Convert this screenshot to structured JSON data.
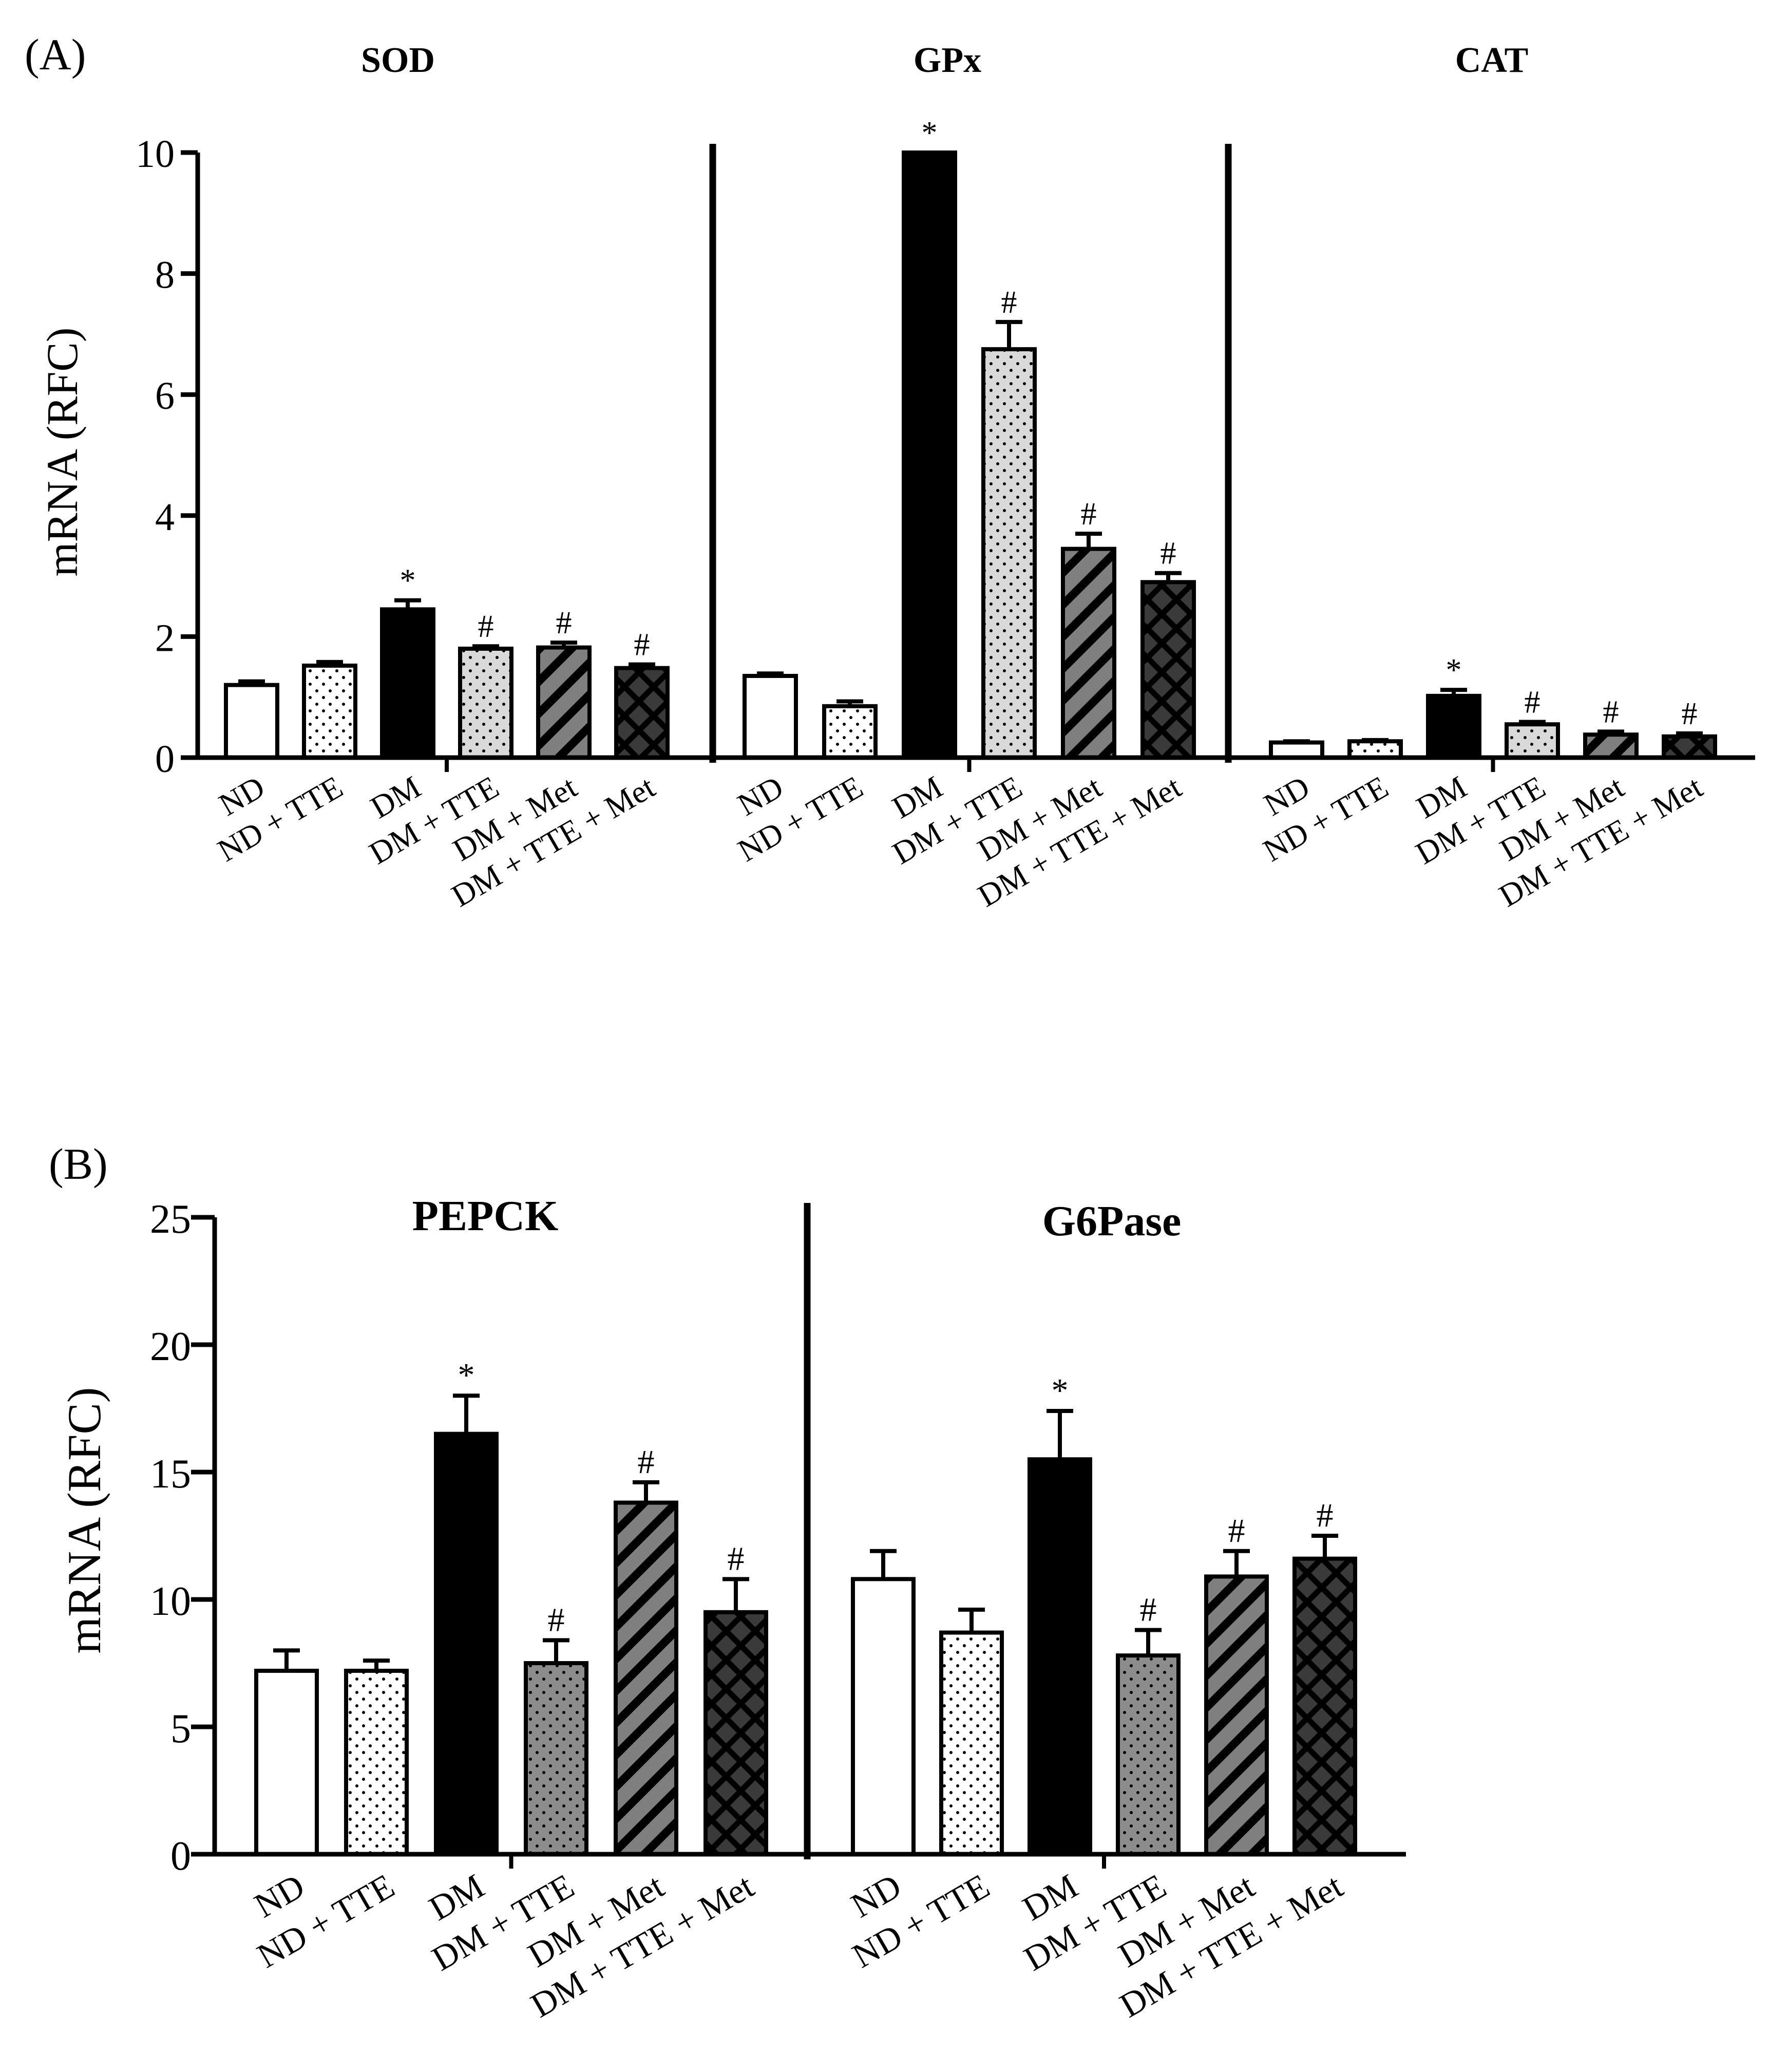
{
  "categories": [
    "ND",
    "ND + TTE",
    "DM",
    "DM + TTE",
    "DM + Met",
    "DM + TTE + Met"
  ],
  "pattern_names": [
    "white",
    "white-dotted",
    "solid-black",
    "gray-dotted",
    "gray-hatched",
    "crosshatch-dark"
  ],
  "colors": {
    "bar_stroke": "#000000",
    "gray_light": "#d9d9d9",
    "gray_mid": "#8c8c8c",
    "gray_hatch": "#7f7f7f",
    "crosshatch_bg": "#3a3a3a"
  },
  "panels": {
    "A": {
      "label": "(A)",
      "ylabel": "mRNA (RFC)"
    },
    "B": {
      "label": "(B)",
      "ylabel": "mRNA (RFC)"
    }
  },
  "chart_data": [
    {
      "type": "bar",
      "panel": "A",
      "title": "SOD",
      "categories": [
        "ND",
        "ND + TTE",
        "DM",
        "DM + TTE",
        "DM + Met",
        "DM + TTE + Met"
      ],
      "values": [
        1.2,
        1.52,
        2.45,
        1.8,
        1.82,
        1.48
      ],
      "errors": [
        0.06,
        0.06,
        0.15,
        0.04,
        0.08,
        0.06
      ],
      "annotations": [
        "",
        "",
        "*",
        "#",
        "#",
        "#"
      ],
      "ylabel": "mRNA (RFC)",
      "ylim": [
        0,
        10
      ],
      "yticks": [
        0,
        2,
        4,
        6,
        8,
        10
      ]
    },
    {
      "type": "bar",
      "panel": "A",
      "title": "GPx",
      "categories": [
        "ND",
        "ND + TTE",
        "DM",
        "DM + TTE",
        "DM + Met",
        "DM + TTE + Met"
      ],
      "values": [
        1.35,
        0.85,
        10.0,
        6.75,
        3.45,
        2.9
      ],
      "errors": [
        0.04,
        0.08,
        0.0,
        0.45,
        0.25,
        0.15
      ],
      "annotations": [
        "",
        "",
        "*",
        "#",
        "#",
        "#"
      ],
      "ylabel": "mRNA (RFC)",
      "ylim": [
        0,
        10
      ]
    },
    {
      "type": "bar",
      "panel": "A",
      "title": "CAT",
      "categories": [
        "ND",
        "ND + TTE",
        "DM",
        "DM + TTE",
        "DM + Met",
        "DM + TTE + Met"
      ],
      "values": [
        0.25,
        0.27,
        1.02,
        0.55,
        0.38,
        0.35
      ],
      "errors": [
        0.02,
        0.02,
        0.1,
        0.04,
        0.05,
        0.05
      ],
      "annotations": [
        "",
        "",
        "*",
        "#",
        "#",
        "#"
      ],
      "ylabel": "mRNA (RFC)",
      "ylim": [
        0,
        10
      ]
    },
    {
      "type": "bar",
      "panel": "B",
      "title": "PEPCK",
      "categories": [
        "ND",
        "ND + TTE",
        "DM",
        "DM + TTE",
        "DM + Met",
        "DM + TTE + Met"
      ],
      "values": [
        7.2,
        7.2,
        16.5,
        7.5,
        13.8,
        9.5
      ],
      "errors": [
        0.8,
        0.4,
        1.5,
        0.9,
        0.8,
        1.3
      ],
      "annotations": [
        "",
        "",
        "*",
        "#",
        "#",
        "#"
      ],
      "ylabel": "mRNA (RFC)",
      "ylim": [
        0,
        25
      ],
      "yticks": [
        0,
        5,
        10,
        15,
        20,
        25
      ]
    },
    {
      "type": "bar",
      "panel": "B",
      "title": "G6Pase",
      "categories": [
        "ND",
        "ND + TTE",
        "DM",
        "DM + TTE",
        "DM + Met",
        "DM + TTE + Met"
      ],
      "values": [
        10.8,
        8.7,
        15.5,
        7.8,
        10.9,
        11.6
      ],
      "errors": [
        1.1,
        0.9,
        1.9,
        1.0,
        1.0,
        0.9
      ],
      "annotations": [
        "",
        "",
        "*",
        "#",
        "#",
        "#"
      ],
      "ylabel": "mRNA (RFC)",
      "ylim": [
        0,
        25
      ]
    }
  ]
}
